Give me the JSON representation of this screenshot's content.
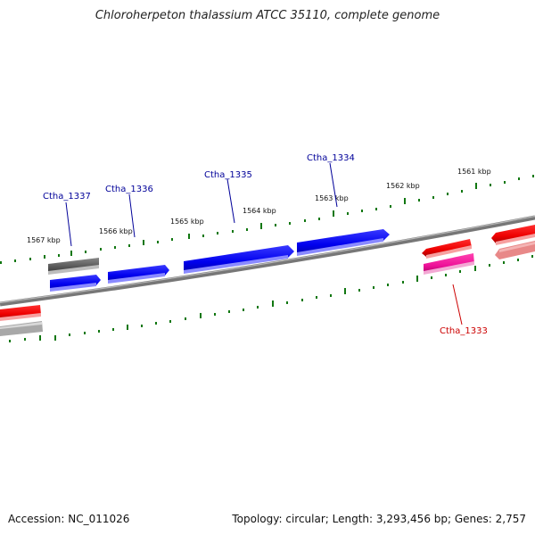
{
  "title": "Chloroherpeton thalassium ATCC 35110, complete genome",
  "footer": {
    "accession": "Accession: NC_011026",
    "summary": "Topology: circular; Length: 3,293,456 bp; Genes: 2,757"
  },
  "scale_labels": [
    "1567 kbp",
    "1566 kbp",
    "1565 kbp",
    "1564 kbp",
    "1563 kbp",
    "1562 kbp",
    "1561 kbp"
  ],
  "gene_labels": {
    "ctha_1337": "Ctha_1337",
    "ctha_1336": "Ctha_1336",
    "ctha_1335": "Ctha_1335",
    "ctha_1334": "Ctha_1334",
    "ctha_1333": "Ctha_1333"
  },
  "colors": {
    "forward_gene": "#0000ee",
    "reverse_gene": "#ee0000",
    "highlight_gene": "#ee1199",
    "pseudo_gene": "#666666",
    "ticks": "#117711",
    "backbone": "#808080",
    "label_forward": "#000099",
    "label_reverse": "#cc0000"
  }
}
